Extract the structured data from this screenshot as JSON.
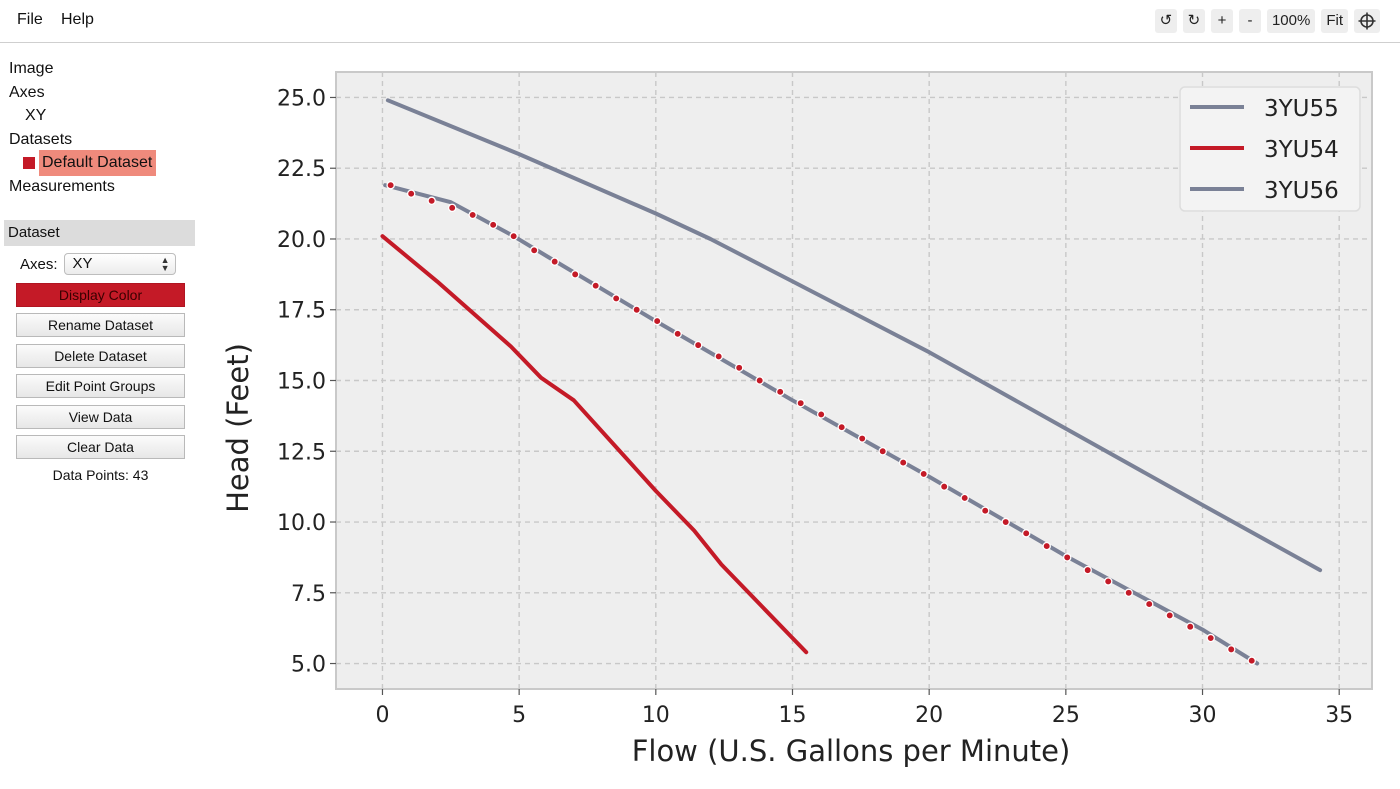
{
  "menu": {
    "file": "File",
    "help": "Help"
  },
  "toolbar": {
    "rotate_left": "↺",
    "rotate_right": "↻",
    "zoom_in": "+",
    "zoom_out": "-",
    "zoom_level": "100%",
    "fit": "Fit",
    "crosshair_icon": "crosshair-icon"
  },
  "tree": {
    "image": "Image",
    "axes": "Axes",
    "axes_item": "XY",
    "datasets": "Datasets",
    "dataset_item": "Default Dataset",
    "dataset_color": "#c41a27",
    "measurements": "Measurements"
  },
  "panel": {
    "header": "Dataset",
    "axes_label": "Axes:",
    "axes_value": "XY",
    "buttons": {
      "display_color": "Display Color",
      "rename": "Rename Dataset",
      "delete": "Delete Dataset",
      "point_groups": "Edit Point Groups",
      "view_data": "View Data",
      "clear_data": "Clear Data"
    },
    "data_points": "Data Points: 43"
  },
  "chart_data": {
    "type": "line",
    "title": "",
    "xlabel": "Flow (U.S. Gallons per Minute)",
    "ylabel": "Head (Feet)",
    "xlim": [
      -1.7,
      36.2
    ],
    "ylim": [
      4.1,
      25.9
    ],
    "xticks": [
      0,
      5,
      10,
      15,
      20,
      25,
      30,
      35
    ],
    "yticks": [
      5.0,
      7.5,
      10.0,
      12.5,
      15.0,
      17.5,
      20.0,
      22.5,
      25.0
    ],
    "xtick_labels": [
      "0",
      "5",
      "10",
      "15",
      "20",
      "25",
      "30",
      "35"
    ],
    "ytick_labels": [
      "5.0",
      "7.5",
      "10.0",
      "12.5",
      "15.0",
      "17.5",
      "20.0",
      "22.5",
      "25.0"
    ],
    "grid": true,
    "legend_position": "top-right",
    "background": "#eeeeee",
    "series": [
      {
        "name": "3YU55",
        "color": "#7a8196",
        "x": [
          0.2,
          5,
          10,
          12,
          15,
          20,
          25,
          30,
          34.3
        ],
        "y": [
          24.9,
          23.0,
          20.9,
          20.0,
          18.5,
          16.0,
          13.3,
          10.6,
          8.3
        ]
      },
      {
        "name": "3YU54",
        "color": "#c41a27",
        "x": [
          0,
          2,
          4.7,
          5.8,
          7,
          8.5,
          10,
          11.4,
          12.4,
          14,
          15.5
        ],
        "y": [
          20.1,
          18.5,
          16.2,
          15.1,
          14.3,
          12.7,
          11.1,
          9.7,
          8.5,
          6.9,
          5.4
        ]
      },
      {
        "name": "3YU56",
        "color": "#7a8196",
        "x": [
          0.1,
          2.5,
          4.8,
          6,
          10,
          15,
          20,
          25,
          30,
          32
        ],
        "y": [
          21.9,
          21.3,
          20.1,
          19.4,
          17.1,
          14.3,
          11.6,
          8.8,
          6.2,
          5.0
        ]
      }
    ],
    "digitized_points": {
      "color": "#c41a27",
      "x": [
        0.3,
        1.05,
        1.8,
        2.55,
        3.3,
        4.05,
        4.8,
        5.55,
        6.3,
        7.05,
        7.8,
        8.55,
        9.3,
        10.05,
        10.8,
        11.55,
        12.3,
        13.05,
        13.8,
        14.55,
        15.3,
        16.05,
        16.8,
        17.55,
        18.3,
        19.05,
        19.8,
        20.55,
        21.3,
        22.05,
        22.8,
        23.55,
        24.3,
        25.05,
        25.8,
        26.55,
        27.3,
        28.05,
        28.8,
        29.55,
        30.3,
        31.05,
        31.8
      ],
      "y": [
        21.9,
        21.6,
        21.35,
        21.1,
        20.85,
        20.5,
        20.1,
        19.6,
        19.2,
        18.75,
        18.35,
        17.9,
        17.5,
        17.1,
        16.65,
        16.25,
        15.85,
        15.45,
        15.0,
        14.6,
        14.2,
        13.8,
        13.35,
        12.95,
        12.5,
        12.1,
        11.7,
        11.25,
        10.85,
        10.4,
        10.0,
        9.6,
        9.15,
        8.75,
        8.3,
        7.9,
        7.5,
        7.1,
        6.7,
        6.3,
        5.9,
        5.5,
        5.1
      ]
    }
  }
}
